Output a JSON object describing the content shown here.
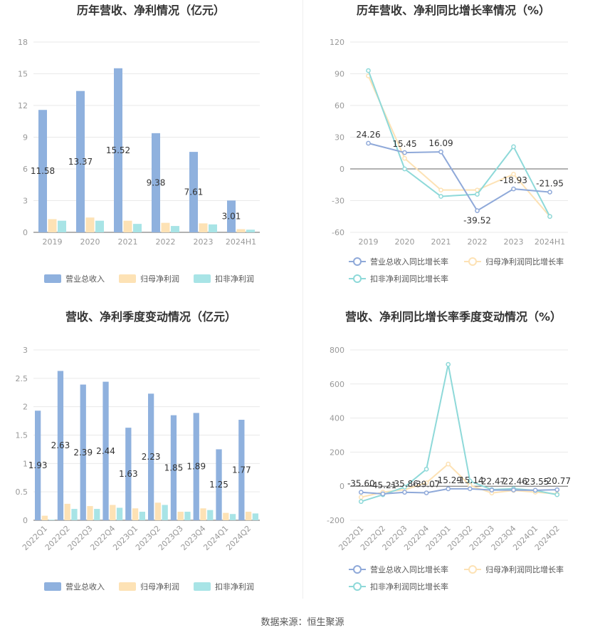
{
  "source_label": "数据来源：恒生聚源",
  "chart_data": [
    {
      "type": "bar",
      "title": "历年营收、净利情况（亿元）",
      "categories": [
        "2019",
        "2020",
        "2021",
        "2022",
        "2023",
        "2024H1"
      ],
      "series": [
        {
          "name": "营业总收入",
          "color": "#8fb1de",
          "values": [
            11.58,
            13.37,
            15.52,
            9.38,
            7.61,
            3.01
          ]
        },
        {
          "name": "归母净利润",
          "color": "#fde2b5",
          "values": [
            1.25,
            1.4,
            1.1,
            0.9,
            0.85,
            0.3
          ]
        },
        {
          "name": "扣非净利润",
          "color": "#a8e4e6",
          "values": [
            1.1,
            1.1,
            0.8,
            0.6,
            0.75,
            0.25
          ]
        }
      ],
      "data_labels": [
        "11.58",
        "13.37",
        "15.52",
        "9.38",
        "7.61",
        "3.01"
      ],
      "y_ticks": [
        "0",
        "3",
        "6",
        "9",
        "12",
        "15",
        "18"
      ],
      "ylim": [
        0,
        18
      ],
      "grid": true,
      "legend": "bottom"
    },
    {
      "type": "line",
      "title": "历年营收、净利同比增长率情况（%）",
      "categories": [
        "2019",
        "2020",
        "2021",
        "2022",
        "2023",
        "2024H1"
      ],
      "series": [
        {
          "name": "营业总收入同比增长率",
          "color": "#8fa9d9",
          "values": [
            24.26,
            15.45,
            16.09,
            -39.52,
            -18.93,
            -21.95
          ]
        },
        {
          "name": "归母净利润同比增长率",
          "color": "#fde2b5",
          "values": [
            88,
            10,
            -20,
            -20,
            -5,
            -45
          ]
        },
        {
          "name": "扣非净利润同比增长率",
          "color": "#8ed9d9",
          "values": [
            93,
            0,
            -26,
            -24,
            21,
            -45
          ]
        }
      ],
      "data_labels": [
        "24.26",
        "15.45",
        "16.09",
        "-39.52",
        "-18.93",
        "-21.95"
      ],
      "y_ticks": [
        "-60",
        "-30",
        "0",
        "30",
        "60",
        "90",
        "120"
      ],
      "ylim": [
        -60,
        120
      ],
      "grid": true,
      "legend": "bottom"
    },
    {
      "type": "bar",
      "title": "营收、净利季度变动情况（亿元）",
      "categories": [
        "2022Q1",
        "2022Q2",
        "2022Q3",
        "2022Q4",
        "2023Q1",
        "2023Q2",
        "2023Q3",
        "2023Q4",
        "2024Q1",
        "2024Q2"
      ],
      "series": [
        {
          "name": "营业总收入",
          "color": "#8fb1de",
          "values": [
            1.93,
            2.63,
            2.39,
            2.44,
            1.63,
            2.23,
            1.85,
            1.89,
            1.25,
            1.77
          ]
        },
        {
          "name": "归母净利润",
          "color": "#fde2b5",
          "values": [
            0.08,
            0.29,
            0.25,
            0.27,
            0.21,
            0.31,
            0.15,
            0.21,
            0.13,
            0.15
          ]
        },
        {
          "name": "扣非净利润",
          "color": "#a8e4e6",
          "values": [
            0.01,
            0.2,
            0.2,
            0.22,
            0.15,
            0.27,
            0.15,
            0.18,
            0.11,
            0.12
          ]
        }
      ],
      "data_labels": [
        "1.93",
        "2.63",
        "2.39",
        "2.44",
        "1.63",
        "2.23",
        "1.85",
        "1.89",
        "1.25",
        "1.77"
      ],
      "y_ticks": [
        "0",
        "0.5",
        "1",
        "1.5",
        "2",
        "2.5",
        "3"
      ],
      "ylim": [
        0,
        3
      ],
      "grid": true,
      "legend": "bottom"
    },
    {
      "type": "line",
      "title": "营收、净利同比增长率季度变动情况（%）",
      "categories": [
        "2022Q1",
        "2022Q2",
        "2022Q3",
        "2022Q4",
        "2023Q1",
        "2023Q2",
        "2023Q3",
        "2023Q4",
        "2024Q1",
        "2024Q2"
      ],
      "series": [
        {
          "name": "营业总收入同比增长率",
          "color": "#8fa9d9",
          "values": [
            -35.6,
            -45.21,
            -35.86,
            -39.07,
            -15.29,
            -15.14,
            -22.47,
            -22.46,
            -23.55,
            -20.77
          ]
        },
        {
          "name": "归母净利润同比增长率",
          "color": "#fde2b5",
          "values": [
            -65,
            -35,
            -20,
            20,
            130,
            5,
            -40,
            -25,
            -35,
            -45
          ]
        },
        {
          "name": "扣非净利润同比增长率",
          "color": "#8ed9d9",
          "values": [
            -90,
            -50,
            -5,
            100,
            715,
            30,
            -20,
            -15,
            -25,
            -50
          ]
        }
      ],
      "data_labels": [
        "-35.60",
        "-45.21",
        "-35.86",
        "-39.07",
        "-15.29",
        "-15.14",
        "-22.47",
        "-22.46",
        "-23.55",
        "-20.77"
      ],
      "y_ticks": [
        "-200",
        "0",
        "200",
        "400",
        "600",
        "800"
      ],
      "ylim": [
        -200,
        800
      ],
      "grid": true,
      "legend": "bottom"
    }
  ]
}
